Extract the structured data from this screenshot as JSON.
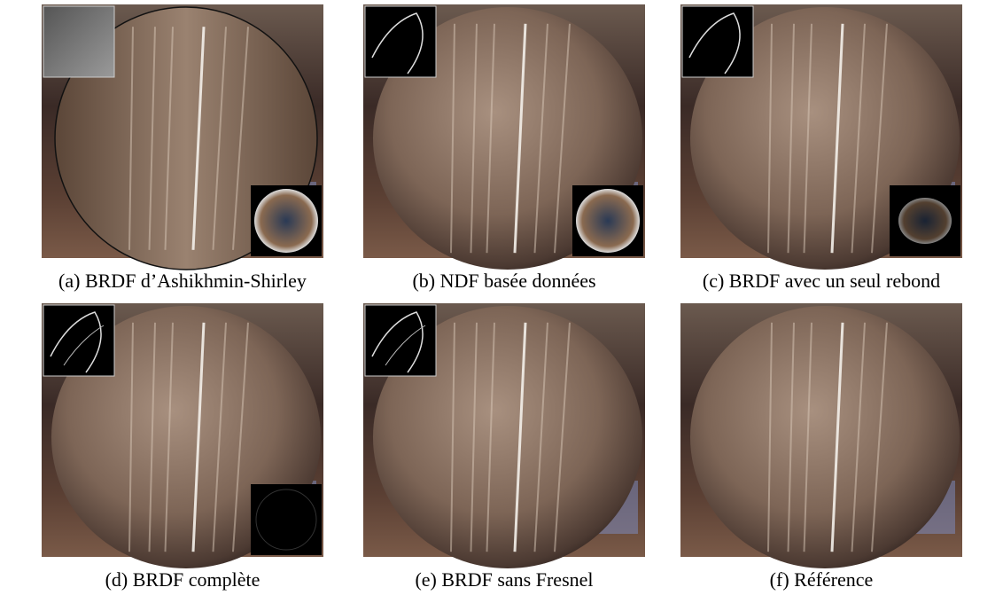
{
  "figure": {
    "panels": [
      {
        "caption": "(a) BRDF d’Ashikhmin-Shirley"
      },
      {
        "caption": "(b) NDF basée données"
      },
      {
        "caption": "(c) BRDF avec un seul rebond"
      },
      {
        "caption": "(d) BRDF complète"
      },
      {
        "caption": "(e) BRDF sans Fresnel"
      },
      {
        "caption": "(f) Référence"
      }
    ]
  }
}
